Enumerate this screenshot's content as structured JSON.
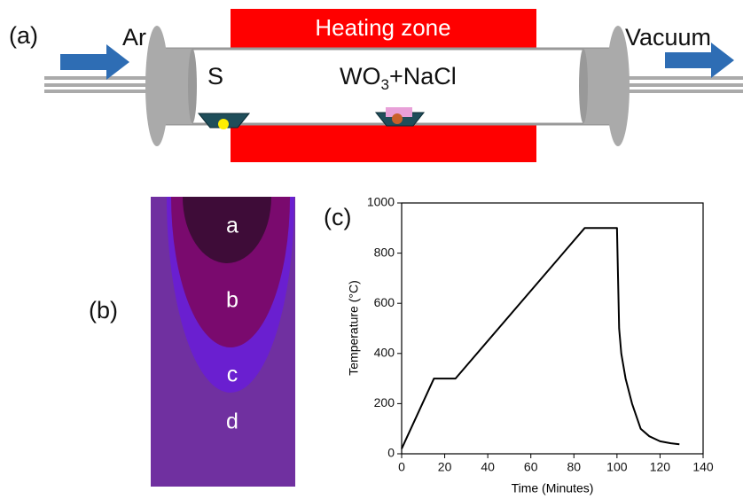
{
  "panel_a": {
    "label": "(a)",
    "heating_zone": "Heating zone",
    "inlet_gas": "Ar",
    "outlet": "Vacuum",
    "source": "S",
    "precursor": {
      "main": "WO",
      "sub": "3",
      "rest": "+NaCl"
    }
  },
  "panel_b": {
    "label": "(b)",
    "regions": [
      "a",
      "b",
      "c",
      "d"
    ]
  },
  "panel_c": {
    "label": "(c)"
  },
  "chart_data": {
    "type": "line",
    "x_label": "Time (Minutes)",
    "y_label": "Temperature (°C)",
    "x": [
      0,
      15,
      25,
      85,
      100,
      100.5,
      101,
      102,
      104,
      107,
      111,
      115,
      120,
      125,
      129
    ],
    "series": [
      {
        "color": "#000000",
        "values": [
          20,
          300,
          300,
          900,
          900,
          700,
          500,
          400,
          300,
          200,
          100,
          70,
          50,
          42,
          38
        ]
      }
    ],
    "xlim": [
      0,
      140
    ],
    "xticks": [
      0,
      20,
      40,
      60,
      80,
      100,
      120,
      140
    ],
    "ylim": [
      0,
      1000
    ],
    "yticks": [
      0,
      200,
      400,
      600,
      800,
      1000
    ]
  }
}
